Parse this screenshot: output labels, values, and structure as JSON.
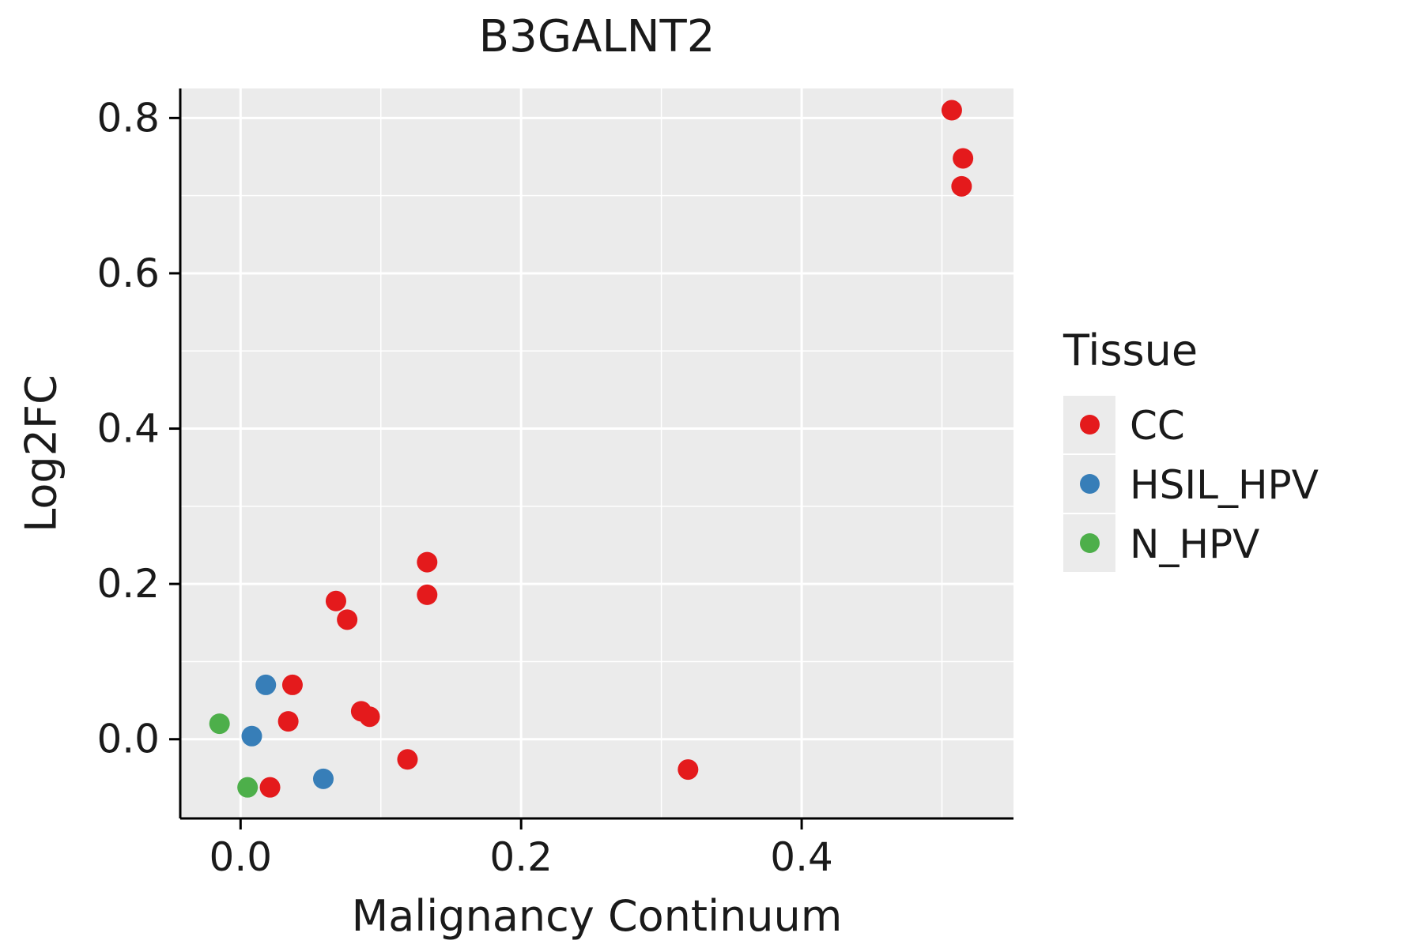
{
  "chart_data": {
    "type": "scatter",
    "title": "B3GALNT2",
    "xlabel": "Malignancy Continuum",
    "ylabel": "Log2FC",
    "legend_title": "Tissue",
    "legend_position": "right",
    "grid": true,
    "panel_color": "#EBEBEB",
    "grid_color": "#FFFFFF",
    "axis_color": "#000000",
    "text_color": "#1a1a1a",
    "xlim": [
      -0.043,
      0.551
    ],
    "ylim": [
      -0.102,
      0.838
    ],
    "x_ticks": [
      0.0,
      0.2,
      0.4
    ],
    "x_tick_labels": [
      "0.0",
      "0.2",
      "0.4"
    ],
    "x_minor_ticks": [
      0.1,
      0.3,
      0.5
    ],
    "y_ticks": [
      0.0,
      0.2,
      0.4,
      0.6,
      0.8
    ],
    "y_tick_labels": [
      "0.0",
      "0.2",
      "0.4",
      "0.6",
      "0.8"
    ],
    "y_minor_ticks": [
      0.1,
      0.3,
      0.5,
      0.7
    ],
    "point_radius": 13,
    "series": [
      {
        "name": "CC",
        "color": "#E41A1C",
        "points": [
          [
            0.507,
            0.81
          ],
          [
            0.515,
            0.748
          ],
          [
            0.514,
            0.712
          ],
          [
            0.133,
            0.228
          ],
          [
            0.133,
            0.186
          ],
          [
            0.068,
            0.178
          ],
          [
            0.076,
            0.154
          ],
          [
            0.037,
            0.07
          ],
          [
            0.034,
            0.023
          ],
          [
            0.086,
            0.036
          ],
          [
            0.092,
            0.029
          ],
          [
            0.119,
            -0.026
          ],
          [
            0.319,
            -0.039
          ],
          [
            0.021,
            -0.062
          ]
        ]
      },
      {
        "name": "HSIL_HPV",
        "color": "#377EB8",
        "points": [
          [
            0.018,
            0.07
          ],
          [
            0.008,
            0.004
          ],
          [
            0.059,
            -0.051
          ]
        ]
      },
      {
        "name": "N_HPV",
        "color": "#4DAF4A",
        "points": [
          [
            -0.015,
            0.02
          ],
          [
            0.005,
            -0.062
          ]
        ]
      }
    ]
  }
}
